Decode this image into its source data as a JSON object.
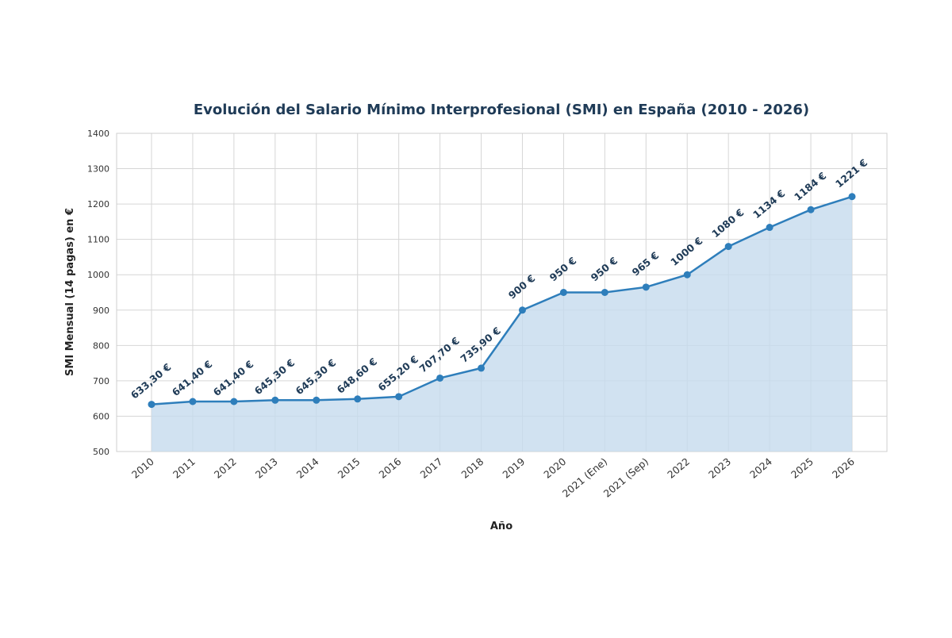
{
  "chart_data": {
    "type": "area",
    "title": "Evolución del Salario Mínimo Interprofesional (SMI) en España (2010 - 2026)",
    "xlabel": "Año",
    "ylabel": "SMI Mensual (14 pagas) en €",
    "ylim": [
      500,
      1400
    ],
    "yticks": [
      500,
      600,
      700,
      800,
      900,
      1000,
      1100,
      1200,
      1300,
      1400
    ],
    "grid": true,
    "colors": {
      "line": "#2e7ebb",
      "fill": "#c6dbee",
      "label": "#1f3b57"
    },
    "categories": [
      "2010",
      "2011",
      "2012",
      "2013",
      "2014",
      "2015",
      "2016",
      "2017",
      "2018",
      "2019",
      "2020",
      "2021 (Ene)",
      "2021 (Sep)",
      "2022",
      "2023",
      "2024",
      "2025",
      "2026"
    ],
    "values": [
      633.3,
      641.4,
      641.4,
      645.3,
      645.3,
      648.6,
      655.2,
      707.7,
      735.9,
      900,
      950,
      950,
      965,
      1000,
      1080,
      1134,
      1184,
      1221
    ],
    "data_labels": [
      "633,30 €",
      "641,40 €",
      "641,40 €",
      "645,30 €",
      "645,30 €",
      "648,60 €",
      "655,20 €",
      "707,70 €",
      "735,90 €",
      "900 €",
      "950 €",
      "950 €",
      "965 €",
      "1000 €",
      "1080 €",
      "1134 €",
      "1184 €",
      "1221 €"
    ]
  }
}
